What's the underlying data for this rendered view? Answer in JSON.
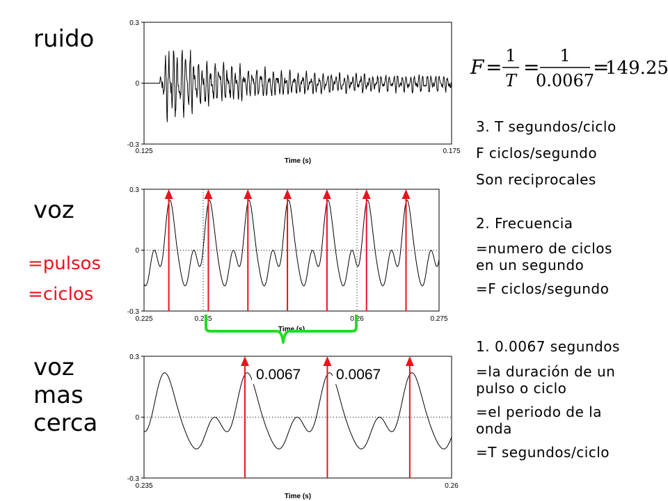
{
  "labels": {
    "ruido": "ruido",
    "voz": "voz",
    "pulsos": "=pulsos",
    "ciclos": "=ciclos",
    "voz_cerca_1": "voz",
    "voz_cerca_2": "mas",
    "voz_cerca_3": "cerca"
  },
  "formula": {
    "lhs": "F",
    "eq1": "=",
    "frac1_num": "1",
    "frac1_den": "T",
    "eq2": "=",
    "frac2_num": "1",
    "frac2_den": "0.0067",
    "eq3": "=",
    "result": "149.25"
  },
  "notes": {
    "n3_title": "3. T segundos/ciclo",
    "n3_line2": "F ciclos/segundo",
    "n3_line3": "Son reciprocales",
    "n2_title": "2. Frecuencia",
    "n2_line2a": "=numero de ciclos",
    "n2_line2b": "en un segundo",
    "n2_line3": "=F ciclos/segundo",
    "n1_title": "1. 0.0067 segundos",
    "n1_line2a": "=la duración de un",
    "n1_line2b": "pulso o ciclo",
    "n1_line3a": "=el periodo de la",
    "n1_line3b": "onda",
    "n1_line4": "=T segundos/ciclo"
  },
  "annotations": {
    "period_a": "0.0067",
    "period_b": "0.0067"
  },
  "colors": {
    "arrow": "#e8141c",
    "brace": "#22dd22",
    "red_text": "#e8141c"
  },
  "chart_data": [
    {
      "type": "line",
      "xlabel": "Time (s)",
      "ylabel": "",
      "xlim": [
        0.125,
        0.175
      ],
      "ylim": [
        -0.3,
        0.3
      ],
      "xtick_labels": [
        "0.125",
        "0.175"
      ],
      "ytick_labels": [
        "0.3",
        "0",
        "-0.3"
      ],
      "grid": false,
      "signal": "decaying noise burst",
      "amplitude_peak": 0.22,
      "decay_to": 0.04
    },
    {
      "type": "line",
      "xlabel": "Time (s)",
      "ylabel": "",
      "xlim": [
        0.225,
        0.275
      ],
      "ylim": [
        -0.3,
        0.3
      ],
      "xtick_labels": [
        "0.225",
        "0.235",
        "0.26",
        "0.275"
      ],
      "ytick_labels": [
        "0.3",
        "0",
        "-0.3"
      ],
      "grid": "dotted at 0.235, 0.26 and y=0",
      "period": 0.0067,
      "pulse_times": [
        0.2292,
        0.2359,
        0.2426,
        0.2493,
        0.256,
        0.2627,
        0.2694
      ]
    },
    {
      "type": "line",
      "xlabel": "Time (s)",
      "ylabel": "",
      "xlim": [
        0.235,
        0.26
      ],
      "ylim": [
        -0.3,
        0.3
      ],
      "xtick_labels": [
        "0.235",
        "0.26"
      ],
      "ytick_labels": [
        "0.3",
        "0",
        "-0.3"
      ],
      "grid": "dotted at y=0",
      "period": 0.0067,
      "pulse_times": [
        0.2432,
        0.2499,
        0.2566
      ]
    }
  ]
}
